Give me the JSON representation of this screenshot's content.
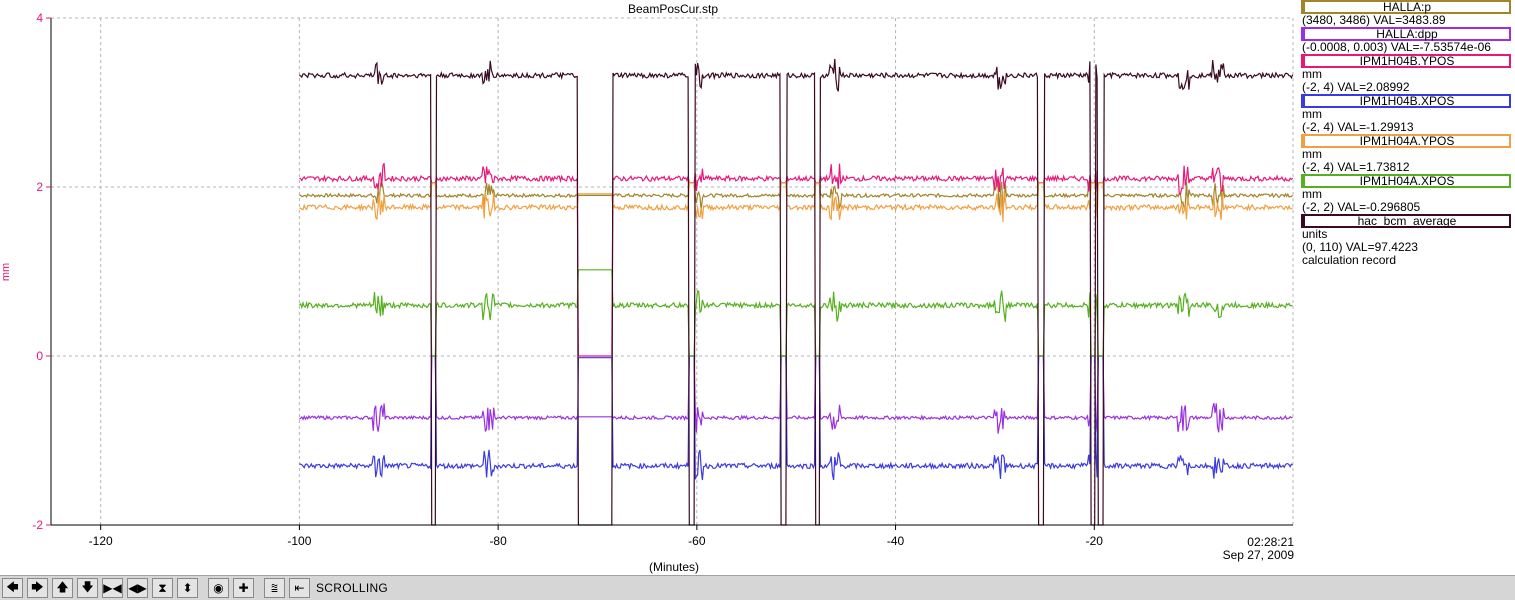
{
  "chart_data": {
    "type": "line",
    "title": "BeamPosCur.stp",
    "xlabel": "(Minutes)",
    "ylabel": "mm",
    "xlim": [
      -125,
      0
    ],
    "ylim": [
      -2,
      4
    ],
    "x_ticks": [
      -120,
      -100,
      -80,
      -60,
      -40,
      -20
    ],
    "y_ticks": [
      -2,
      0,
      2,
      4
    ],
    "time_label": "02:28:21",
    "date_label": "Sep 27, 2009",
    "grid": true,
    "axis_color": "#e8187a",
    "series": [
      {
        "name": "HALLA:p",
        "color": "#a0852a",
        "base": 1.9,
        "noise": 0.02
      },
      {
        "name": "HALLA:dpp",
        "color": "#9b30e0",
        "base": -0.73,
        "noise": 0.02
      },
      {
        "name": "IPM1H04B.YPOS",
        "color": "#e8187a",
        "base": 2.1,
        "noise": 0.03
      },
      {
        "name": "IPM1H04B.XPOS",
        "color": "#3a3ae0",
        "base": -1.3,
        "noise": 0.03
      },
      {
        "name": "IPM1H04A.YPOS",
        "color": "#f0a040",
        "base": 1.76,
        "noise": 0.03
      },
      {
        "name": "IPM1H04A.XPOS",
        "color": "#55b020",
        "base": 0.6,
        "noise": 0.03
      },
      {
        "name": "hac_bcm_average",
        "color": "#3a0a22",
        "base": 3.32,
        "noise": 0.03
      }
    ],
    "data_start": -100,
    "data_end": 0,
    "outages": [
      [
        -86.7,
        -86.2
      ],
      [
        -72,
        -68.5
      ],
      [
        -60.8,
        -60.2
      ],
      [
        -51.6,
        -51
      ],
      [
        -48.1,
        -47.6
      ],
      [
        -25.6,
        -25
      ],
      [
        -20.4,
        -19.9
      ],
      [
        -19.6,
        -19.1
      ]
    ],
    "spikes": [
      -92,
      -81,
      -60,
      -46,
      -29.5,
      -20,
      -11,
      -7.5
    ]
  },
  "legend": [
    {
      "name": "HALLA:p",
      "color": "#a0852a",
      "lines": [
        "(3480, 3486) VAL=3483.89"
      ]
    },
    {
      "name": "HALLA:dpp",
      "color": "#9b30e0",
      "lines": [
        "(-0.0008, 0.003) VAL=-7.53574e-06"
      ]
    },
    {
      "name": "IPM1H04B.YPOS",
      "color": "#e8187a",
      "lines": [
        "mm",
        "(-2, 4) VAL=2.08992"
      ]
    },
    {
      "name": "IPM1H04B.XPOS",
      "color": "#3a3ae0",
      "lines": [
        "mm",
        "(-2, 4) VAL=-1.29913"
      ]
    },
    {
      "name": "IPM1H04A.YPOS",
      "color": "#f0a040",
      "lines": [
        "mm",
        "(-2, 4) VAL=1.73812"
      ]
    },
    {
      "name": "IPM1H04A.XPOS",
      "color": "#55b020",
      "lines": [
        "mm",
        "(-2, 2) VAL=-0.296805"
      ]
    },
    {
      "name": "hac_bcm_average",
      "color": "#3a0a22",
      "lines": [
        "units",
        "(0, 110) VAL=97.4223",
        "calculation record"
      ]
    }
  ],
  "toolbar": {
    "buttons": [
      {
        "name": "scroll-left-button",
        "icon": "arrow-left-icon",
        "glyph": "🡄"
      },
      {
        "name": "scroll-right-button",
        "icon": "arrow-right-icon",
        "glyph": "🡆"
      },
      {
        "name": "scroll-up-button",
        "icon": "arrow-up-icon",
        "glyph": "🡅"
      },
      {
        "name": "scroll-down-button",
        "icon": "arrow-down-icon",
        "glyph": "🡇"
      },
      {
        "name": "zoom-in-x-button",
        "icon": "zoom-in-x-icon",
        "glyph": "▶◀"
      },
      {
        "name": "zoom-out-x-button",
        "icon": "zoom-out-x-icon",
        "glyph": "◀▶"
      },
      {
        "name": "zoom-in-y-button",
        "icon": "zoom-in-y-icon",
        "glyph": "⧗"
      },
      {
        "name": "zoom-out-y-button",
        "icon": "zoom-out-y-icon",
        "glyph": "⬍"
      },
      {
        "name": "config-button",
        "icon": "config-icon",
        "glyph": "◉"
      },
      {
        "name": "add-button",
        "icon": "plus-icon",
        "glyph": "✚"
      },
      {
        "name": "auto-scale-button",
        "icon": "auto-scale-icon",
        "glyph": "⩰"
      },
      {
        "name": "scroll-mode-button",
        "icon": "scroll-mode-icon",
        "glyph": "⇤"
      }
    ],
    "status": "SCROLLING"
  }
}
